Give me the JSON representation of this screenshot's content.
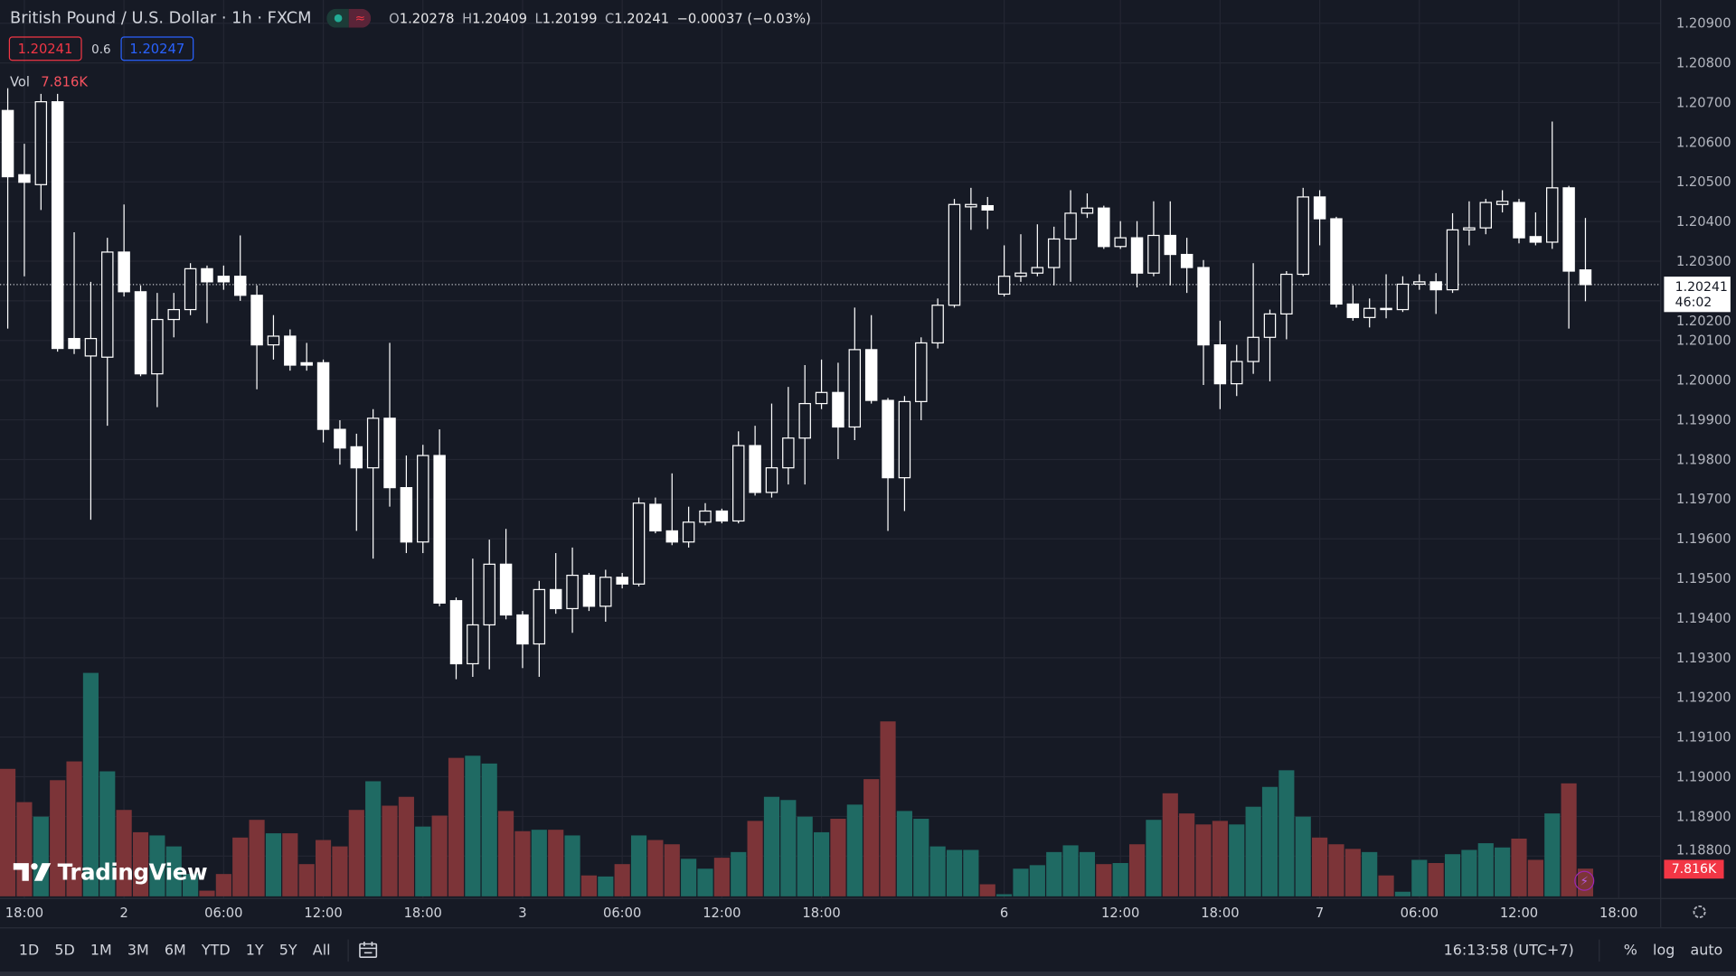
{
  "header": {
    "title": "British Pound / U.S. Dollar · 1h · FXCM",
    "market_status_icon": "market-open-dot",
    "wave_icon": "approx-icon",
    "ohlc": {
      "o_label": "O",
      "o": "1.20278",
      "h_label": "H",
      "h": "1.20409",
      "l_label": "L",
      "l": "1.20199",
      "c_label": "C",
      "c": "1.20241",
      "change": "−0.00037 (−0.03%)"
    }
  },
  "trade": {
    "sell": "1.20241",
    "spread": "0.6",
    "buy": "1.20247"
  },
  "volume_legend": {
    "label": "Vol",
    "value": "7.816K"
  },
  "price_tag": {
    "price": "1.20241",
    "countdown": "46:02"
  },
  "volume_tag": "7.816K",
  "logo": "TradingView",
  "colors": {
    "background": "#161a25",
    "grid": "#232632",
    "up_volume": "#1f6a63",
    "down_volume": "#7c3438",
    "candle": "#ffffff",
    "sell": "#f23645",
    "buy": "#2962ff"
  },
  "chart_data": {
    "type": "candlestick",
    "symbol": "GBPUSD",
    "interval": "1h",
    "price_axis": [
      "1.20900",
      "1.20800",
      "1.20700",
      "1.20600",
      "1.20500",
      "1.20400",
      "1.20300",
      "1.20200",
      "1.20100",
      "1.20000",
      "1.19900",
      "1.19800",
      "1.19700",
      "1.19600",
      "1.19500",
      "1.19400",
      "1.19300",
      "1.19200",
      "1.19100",
      "1.19000",
      "1.18900",
      "1.18800"
    ],
    "ylim": [
      1.1877,
      1.2095
    ],
    "time_axis": [
      {
        "label": "18:00",
        "bar": 1
      },
      {
        "label": "2",
        "bar": 7
      },
      {
        "label": "06:00",
        "bar": 13
      },
      {
        "label": "12:00",
        "bar": 19
      },
      {
        "label": "18:00",
        "bar": 25
      },
      {
        "label": "3",
        "bar": 31
      },
      {
        "label": "06:00",
        "bar": 37
      },
      {
        "label": "12:00",
        "bar": 43
      },
      {
        "label": "18:00",
        "bar": 49
      },
      {
        "label": "6",
        "bar": 60
      },
      {
        "label": "12:00",
        "bar": 67
      },
      {
        "label": "18:00",
        "bar": 73
      },
      {
        "label": "7",
        "bar": 79
      },
      {
        "label": "06:00",
        "bar": 85
      },
      {
        "label": "12:00",
        "bar": 91
      },
      {
        "label": "18:00",
        "bar": 97
      }
    ],
    "ohlc": [
      [
        1.2068,
        1.20736,
        1.2013,
        1.20513
      ],
      [
        1.20518,
        1.20596,
        1.20262,
        1.20499
      ],
      [
        1.20493,
        1.20722,
        1.20429,
        1.20702
      ],
      [
        1.20702,
        1.20722,
        1.20072,
        1.2008
      ],
      [
        1.20105,
        1.20373,
        1.20066,
        1.2008
      ],
      [
        1.20061,
        1.20248,
        1.19648,
        1.20105
      ],
      [
        1.20058,
        1.20359,
        1.19885,
        1.20323
      ],
      [
        1.20323,
        1.20443,
        1.20211,
        1.20223
      ],
      [
        1.20223,
        1.20239,
        1.2001,
        1.20016
      ],
      [
        1.20016,
        1.2022,
        1.19932,
        1.20153
      ],
      [
        1.20153,
        1.2022,
        1.20108,
        1.20178
      ],
      [
        1.20178,
        1.20295,
        1.20164,
        1.20281
      ],
      [
        1.20281,
        1.20289,
        1.20144,
        1.20248
      ],
      [
        1.20262,
        1.20289,
        1.20228,
        1.20248
      ],
      [
        1.20262,
        1.20365,
        1.202,
        1.20214
      ],
      [
        1.20214,
        1.20239,
        1.19977,
        1.20089
      ],
      [
        1.20089,
        1.20164,
        1.20052,
        1.20111
      ],
      [
        1.20111,
        1.20128,
        1.20024,
        1.20038
      ],
      [
        1.20044,
        1.20094,
        1.20024,
        1.20038
      ],
      [
        1.20044,
        1.20052,
        1.19843,
        1.19876
      ],
      [
        1.19876,
        1.19899,
        1.19787,
        1.19829
      ],
      [
        1.19832,
        1.19865,
        1.1962,
        1.19779
      ],
      [
        1.19779,
        1.19927,
        1.1955,
        1.19904
      ],
      [
        1.19904,
        1.20094,
        1.19681,
        1.19729
      ],
      [
        1.19729,
        1.1981,
        1.19564,
        1.19592
      ],
      [
        1.19592,
        1.19837,
        1.19564,
        1.1981
      ],
      [
        1.1981,
        1.19876,
        1.1943,
        1.19438
      ],
      [
        1.19444,
        1.19452,
        1.19246,
        1.19285
      ],
      [
        1.19285,
        1.1955,
        1.19252,
        1.19383
      ],
      [
        1.19383,
        1.19598,
        1.19271,
        1.19536
      ],
      [
        1.19536,
        1.19625,
        1.19397,
        1.19408
      ],
      [
        1.19408,
        1.19418,
        1.19274,
        1.19335
      ],
      [
        1.19335,
        1.19494,
        1.19252,
        1.19472
      ],
      [
        1.19472,
        1.19564,
        1.19411,
        1.19424
      ],
      [
        1.19424,
        1.19578,
        1.19363,
        1.19508
      ],
      [
        1.19508,
        1.19514,
        1.19418,
        1.1943
      ],
      [
        1.1943,
        1.19522,
        1.19391,
        1.19503
      ],
      [
        1.19503,
        1.19514,
        1.19475,
        1.19486
      ],
      [
        1.19486,
        1.19704,
        1.1948,
        1.1969
      ],
      [
        1.19687,
        1.19704,
        1.19614,
        1.1962
      ],
      [
        1.1962,
        1.19765,
        1.19584,
        1.19592
      ],
      [
        1.19592,
        1.19681,
        1.19578,
        1.19642
      ],
      [
        1.19642,
        1.1969,
        1.19634,
        1.1967
      ],
      [
        1.1967,
        1.19676,
        1.19639,
        1.19645
      ],
      [
        1.19645,
        1.19871,
        1.19639,
        1.19835
      ],
      [
        1.19835,
        1.19885,
        1.19709,
        1.19717
      ],
      [
        1.19717,
        1.19941,
        1.19704,
        1.19779
      ],
      [
        1.19779,
        1.19983,
        1.19737,
        1.19854
      ],
      [
        1.19854,
        1.20038,
        1.19737,
        1.19941
      ],
      [
        1.19941,
        1.20052,
        1.19927,
        1.19969
      ],
      [
        1.19969,
        1.20044,
        1.19801,
        1.19882
      ],
      [
        1.19882,
        1.20183,
        1.19849,
        1.20077
      ],
      [
        1.20077,
        1.20164,
        1.19941,
        1.19949
      ],
      [
        1.19949,
        1.19955,
        1.1962,
        1.19754
      ],
      [
        1.19754,
        1.1996,
        1.1967,
        1.19946
      ],
      [
        1.19946,
        1.20108,
        1.19899,
        1.20094
      ],
      [
        1.20094,
        1.20206,
        1.2008,
        1.20189
      ],
      [
        1.20189,
        1.20457,
        1.20183,
        1.20443
      ],
      [
        1.20437,
        1.20485,
        1.20379,
        1.20443
      ],
      [
        1.2044,
        1.20462,
        1.20381,
        1.20429
      ],
      [
        1.20217,
        1.2034,
        1.20211,
        1.20262
      ],
      [
        1.20262,
        1.20368,
        1.20248,
        1.2027
      ],
      [
        1.2027,
        1.20393,
        1.20262,
        1.20284
      ],
      [
        1.20284,
        1.20387,
        1.20239,
        1.20356
      ],
      [
        1.20356,
        1.20479,
        1.20248,
        1.20421
      ],
      [
        1.20421,
        1.20471,
        1.20409,
        1.20434
      ],
      [
        1.20434,
        1.2044,
        1.20331,
        1.20337
      ],
      [
        1.20337,
        1.20401,
        1.20331,
        1.20359
      ],
      [
        1.20359,
        1.20401,
        1.20234,
        1.2027
      ],
      [
        1.2027,
        1.20451,
        1.20262,
        1.20365
      ],
      [
        1.20365,
        1.20451,
        1.20239,
        1.20317
      ],
      [
        1.20317,
        1.20359,
        1.2022,
        1.20284
      ],
      [
        1.20284,
        1.20303,
        1.19988,
        1.20089
      ],
      [
        1.20089,
        1.2015,
        1.19927,
        1.19991
      ],
      [
        1.19991,
        1.20089,
        1.1996,
        1.20047
      ],
      [
        1.20047,
        1.20295,
        1.20016,
        1.20108
      ],
      [
        1.20108,
        1.20178,
        1.19997,
        1.20167
      ],
      [
        1.20167,
        1.20275,
        1.20103,
        1.20267
      ],
      [
        1.20267,
        1.20485,
        1.20262,
        1.20462
      ],
      [
        1.20462,
        1.20479,
        1.2034,
        1.20407
      ],
      [
        1.20407,
        1.20412,
        1.20183,
        1.20192
      ],
      [
        1.20192,
        1.20239,
        1.2015,
        1.20158
      ],
      [
        1.20158,
        1.20206,
        1.20133,
        1.20181
      ],
      [
        1.20181,
        1.20267,
        1.20156,
        1.20178
      ],
      [
        1.20178,
        1.20262,
        1.20172,
        1.20242
      ],
      [
        1.20242,
        1.20267,
        1.20228,
        1.20248
      ],
      [
        1.20248,
        1.2027,
        1.20167,
        1.20228
      ],
      [
        1.20228,
        1.20421,
        1.2022,
        1.20379
      ],
      [
        1.20379,
        1.20451,
        1.2034,
        1.20384
      ],
      [
        1.20384,
        1.20457,
        1.20368,
        1.20448
      ],
      [
        1.20443,
        1.20479,
        1.20423,
        1.20451
      ],
      [
        1.20448,
        1.20457,
        1.20345,
        1.20359
      ],
      [
        1.20362,
        1.20423,
        1.2034,
        1.20348
      ],
      [
        1.20348,
        1.20652,
        1.20331,
        1.20485
      ],
      [
        1.20485,
        1.2049,
        1.2013,
        1.20275
      ],
      [
        1.20278,
        1.20409,
        1.20199,
        1.20241
      ]
    ],
    "volume_k": [
      36.0,
      26.6,
      22.5,
      32.8,
      38.1,
      63.1,
      35.3,
      24.4,
      18.1,
      17.2,
      14.1,
      6.3,
      1.6,
      6.3,
      16.6,
      21.6,
      17.8,
      17.8,
      9.1,
      15.9,
      14.1,
      24.4,
      32.5,
      25.6,
      28.1,
      19.7,
      22.8,
      39.1,
      39.7,
      37.5,
      24.1,
      18.4,
      18.8,
      18.8,
      17.2,
      5.9,
      5.6,
      9.1,
      17.2,
      15.9,
      14.7,
      10.6,
      7.8,
      10.9,
      12.5,
      21.3,
      28.1,
      27.2,
      22.5,
      18.1,
      21.9,
      25.9,
      33.1,
      49.4,
      24.1,
      21.9,
      14.1,
      13.1,
      13.1,
      3.4,
      0.6,
      7.8,
      8.8,
      12.5,
      14.4,
      12.5,
      9.1,
      9.4,
      14.7,
      21.6,
      29.1,
      23.4,
      20.3,
      21.3,
      20.3,
      25.3,
      30.9,
      35.6,
      22.5,
      16.6,
      14.7,
      13.4,
      12.5,
      5.9,
      1.3,
      10.3,
      9.4,
      11.9,
      13.1,
      15.0,
      13.8,
      16.3,
      10.3,
      23.4,
      31.9,
      7.816
    ],
    "last_price": 1.20241,
    "grid": true
  },
  "toolbar": {
    "ranges": [
      "1D",
      "5D",
      "1M",
      "3M",
      "6M",
      "YTD",
      "1Y",
      "5Y",
      "All"
    ],
    "date_range_icon": "calendar-icon",
    "clock": "16:13:58 (UTC+7)",
    "percent": "%",
    "log": "log",
    "auto": "auto",
    "settings_icon": "gear-icon"
  }
}
